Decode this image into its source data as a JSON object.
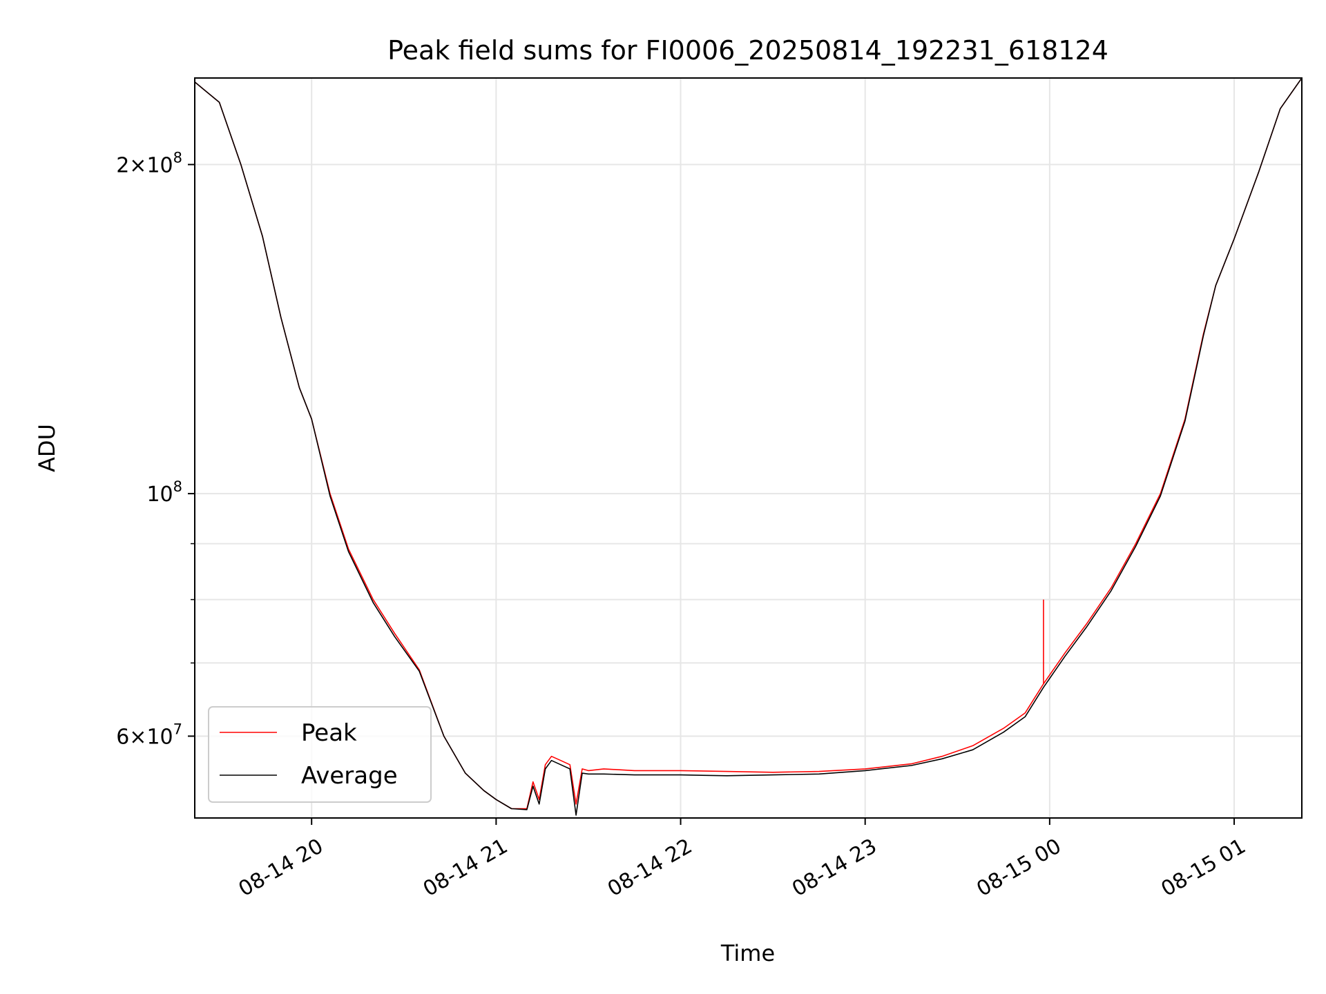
{
  "chart_data": {
    "type": "line",
    "title": "Peak field sums for FI0006_20250814_192231_618124",
    "xlabel": "Time",
    "ylabel": "ADU",
    "y_scale": "log",
    "grid": true,
    "legend_placement": "lower-left",
    "xlim": [
      "2025-08-14T19:22",
      "2025-08-15T01:22"
    ],
    "ylim": [
      50500000,
      240000000
    ],
    "x_ticks": [
      {
        "value": "2025-08-14T20:00",
        "label": "08-14 20"
      },
      {
        "value": "2025-08-14T21:00",
        "label": "08-14 21"
      },
      {
        "value": "2025-08-14T22:00",
        "label": "08-14 22"
      },
      {
        "value": "2025-08-14T23:00",
        "label": "08-14 23"
      },
      {
        "value": "2025-08-15T00:00",
        "label": "08-15 00"
      },
      {
        "value": "2025-08-15T01:00",
        "label": "08-15 01"
      }
    ],
    "y_major_ticks": [
      {
        "value": 60000000,
        "base": "6",
        "exp": "7"
      },
      {
        "value": 100000000,
        "base": "",
        "exp": "8"
      },
      {
        "value": 200000000,
        "base": "2",
        "exp": "8"
      }
    ],
    "y_minor_ticks": [
      50000000,
      70000000,
      80000000,
      90000000
    ],
    "x": [
      "2025-08-14T19:22",
      "2025-08-14T19:30",
      "2025-08-14T19:37",
      "2025-08-14T19:44",
      "2025-08-14T19:50",
      "2025-08-14T19:56",
      "2025-08-14T20:00",
      "2025-08-14T20:06",
      "2025-08-14T20:12",
      "2025-08-14T20:20",
      "2025-08-14T20:27",
      "2025-08-14T20:35",
      "2025-08-14T20:43",
      "2025-08-14T20:50",
      "2025-08-14T20:56",
      "2025-08-14T21:00",
      "2025-08-14T21:05",
      "2025-08-14T21:10",
      "2025-08-14T21:12",
      "2025-08-14T21:14",
      "2025-08-14T21:16",
      "2025-08-14T21:18",
      "2025-08-14T21:21",
      "2025-08-14T21:24",
      "2025-08-14T21:26",
      "2025-08-14T21:28",
      "2025-08-14T21:30",
      "2025-08-14T21:35",
      "2025-08-14T21:45",
      "2025-08-14T22:00",
      "2025-08-14T22:15",
      "2025-08-14T22:30",
      "2025-08-14T22:45",
      "2025-08-14T23:00",
      "2025-08-14T23:15",
      "2025-08-14T23:25",
      "2025-08-14T23:35",
      "2025-08-14T23:45",
      "2025-08-14T23:52",
      "2025-08-14T23:58",
      "2025-08-15T00:05",
      "2025-08-15T00:12",
      "2025-08-15T00:20",
      "2025-08-15T00:28",
      "2025-08-15T00:36",
      "2025-08-15T00:44",
      "2025-08-15T00:50",
      "2025-08-15T00:54",
      "2025-08-15T01:00",
      "2025-08-15T01:08",
      "2025-08-15T01:15",
      "2025-08-15T01:22"
    ],
    "series": [
      {
        "name": "Peak",
        "color": "#ff0000",
        "values": [
          238000000,
          228000000,
          200000000,
          172000000,
          145000000,
          125000000,
          117000000,
          100000000,
          89000000,
          80000000,
          74500000,
          69000000,
          60000000,
          55500000,
          53500000,
          52500000,
          51500000,
          51500000,
          54500000,
          52500000,
          56500000,
          57500000,
          57000000,
          56500000,
          52000000,
          56000000,
          55800000,
          56000000,
          55800000,
          55800000,
          55700000,
          55600000,
          55700000,
          56000000,
          56600000,
          57500000,
          58800000,
          61000000,
          63000000,
          67000000,
          71500000,
          76000000,
          82000000,
          90000000,
          100000000,
          117000000,
          140000000,
          155000000,
          171000000,
          197000000,
          225000000,
          240000000
        ]
      },
      {
        "name": "Average",
        "color": "#000000",
        "values": [
          238000000,
          228000000,
          200000000,
          172000000,
          145000000,
          125000000,
          117000000,
          99500000,
          88500000,
          79500000,
          74000000,
          68800000,
          60000000,
          55500000,
          53500000,
          52500000,
          51500000,
          51400000,
          54000000,
          52000000,
          56000000,
          57000000,
          56500000,
          56000000,
          50800000,
          55500000,
          55400000,
          55400000,
          55300000,
          55300000,
          55200000,
          55300000,
          55400000,
          55800000,
          56400000,
          57200000,
          58300000,
          60500000,
          62500000,
          66500000,
          71000000,
          75500000,
          81500000,
          89500000,
          99500000,
          116500000,
          139500000,
          155000000,
          171000000,
          197000000,
          225000000,
          240000000
        ]
      }
    ],
    "annotations": [
      {
        "series": "Peak",
        "x": "2025-08-14T23:58",
        "value": 80000000,
        "note": "spike"
      }
    ]
  }
}
